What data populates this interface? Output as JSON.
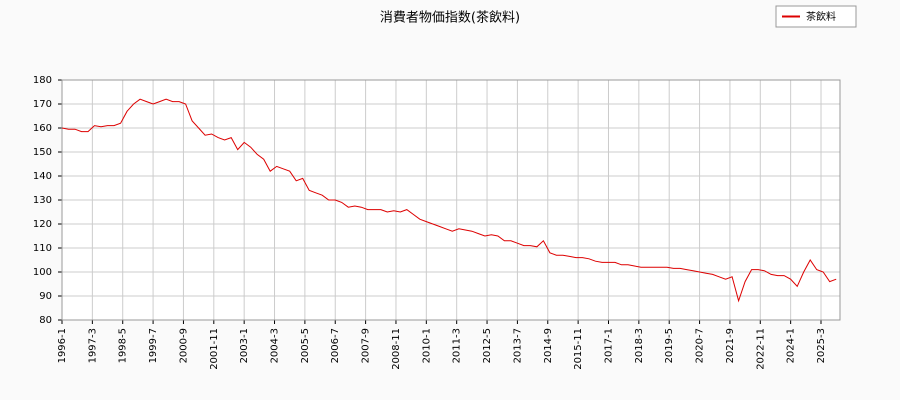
{
  "chart_data": {
    "type": "line",
    "title": "消費者物価指数(茶飲料)",
    "series": [
      {
        "name": "茶飲料",
        "color": "#dd0000",
        "x": [
          "1996-1",
          "1996-4",
          "1996-7",
          "1996-10",
          "1997-1",
          "1997-4",
          "1997-7",
          "1997-10",
          "1998-1",
          "1998-4",
          "1998-7",
          "1998-10",
          "1999-1",
          "1999-4",
          "1999-7",
          "1999-10",
          "2000-1",
          "2000-4",
          "2000-7",
          "2000-10",
          "2001-1",
          "2001-4",
          "2001-7",
          "2001-10",
          "2002-1",
          "2002-4",
          "2002-7",
          "2002-10",
          "2003-1",
          "2003-4",
          "2003-7",
          "2003-10",
          "2004-1",
          "2004-4",
          "2004-7",
          "2004-10",
          "2005-1",
          "2005-4",
          "2005-7",
          "2005-10",
          "2006-1",
          "2006-4",
          "2006-7",
          "2006-10",
          "2007-1",
          "2007-4",
          "2007-7",
          "2007-10",
          "2008-1",
          "2008-4",
          "2008-7",
          "2008-10",
          "2009-1",
          "2009-4",
          "2009-7",
          "2009-10",
          "2010-1",
          "2010-4",
          "2010-7",
          "2010-10",
          "2011-1",
          "2011-4",
          "2011-7",
          "2011-10",
          "2012-1",
          "2012-4",
          "2012-7",
          "2012-10",
          "2013-1",
          "2013-4",
          "2013-7",
          "2013-10",
          "2014-1",
          "2014-4",
          "2014-7",
          "2014-10",
          "2015-1",
          "2015-4",
          "2015-7",
          "2015-10",
          "2016-1",
          "2016-4",
          "2016-7",
          "2016-10",
          "2017-1",
          "2017-4",
          "2017-7",
          "2017-10",
          "2018-1",
          "2018-4",
          "2018-7",
          "2018-10",
          "2019-1",
          "2019-4",
          "2019-7",
          "2019-10",
          "2020-1",
          "2020-4",
          "2020-7",
          "2020-10",
          "2021-1",
          "2021-4",
          "2021-7",
          "2021-10",
          "2022-1",
          "2022-4",
          "2022-7",
          "2022-10",
          "2023-1",
          "2023-4",
          "2023-7",
          "2023-10",
          "2024-1",
          "2024-4",
          "2024-7",
          "2024-10",
          "2025-1",
          "2025-4",
          "2025-7",
          "2025-10"
        ],
        "values": [
          160,
          159.5,
          159.5,
          158.5,
          158.5,
          161,
          160.5,
          161,
          161,
          162,
          167,
          170,
          172,
          171,
          170,
          171,
          172,
          171,
          171,
          170,
          163,
          160,
          157,
          157.5,
          156,
          155,
          156,
          151,
          154,
          152,
          149,
          147,
          142,
          144,
          143,
          142,
          138,
          139,
          134,
          133,
          132,
          130,
          130,
          129,
          127,
          127.5,
          127,
          126,
          126,
          126,
          125,
          125.5,
          125,
          126,
          124,
          122,
          121,
          120,
          119,
          118,
          117,
          118,
          117.5,
          117,
          116,
          115,
          115.5,
          115,
          113,
          113,
          112,
          111,
          111,
          110.5,
          113,
          108,
          107,
          107,
          106.5,
          106,
          106,
          105.5,
          104.5,
          104,
          104,
          104,
          103,
          103,
          102.5,
          102,
          102,
          102,
          102,
          102,
          101.5,
          101.5,
          101,
          100.5,
          100,
          99.5,
          99,
          98,
          97,
          98,
          88,
          96,
          101,
          101,
          100.5,
          99,
          98.5,
          98.5,
          97,
          94,
          100,
          105,
          101,
          100,
          96,
          97
        ]
      }
    ],
    "xticks": [
      "1996-1",
      "1997-3",
      "1998-5",
      "1999-7",
      "2000-9",
      "2001-11",
      "2003-1",
      "2004-3",
      "2005-5",
      "2006-7",
      "2007-9",
      "2008-11",
      "2010-1",
      "2011-3",
      "2012-5",
      "2013-7",
      "2014-9",
      "2015-11",
      "2017-1",
      "2018-3",
      "2019-5",
      "2020-7",
      "2021-9",
      "2022-11",
      "2024-1",
      "2025-3"
    ],
    "ylim": [
      80,
      180
    ],
    "yticks": [
      80,
      90,
      100,
      110,
      120,
      130,
      140,
      150,
      160,
      170,
      180
    ],
    "grid": true,
    "legend": "top-right"
  }
}
